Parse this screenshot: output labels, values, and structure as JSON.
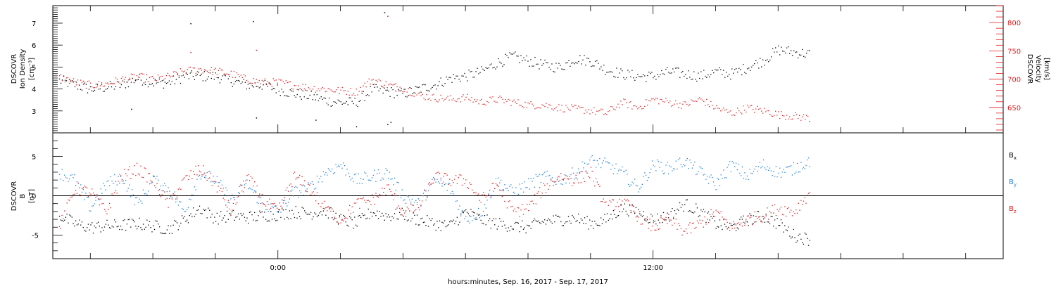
{
  "x_axis_title": "hours:minutes, Sep. 16, 2017 - Sep. 17, 2017",
  "colors": {
    "black": "#000000",
    "blue": "#1f7fe0",
    "red": "#e41a1c"
  },
  "chart_data": [
    {
      "type": "scatter",
      "panel": "top",
      "x_unit": "hours from 00:00 Sep. 17, 2017",
      "xlim": [
        -7.2,
        23.2
      ],
      "x_ticks": [
        {
          "x": 0,
          "label": "0:00"
        },
        {
          "x": 12,
          "label": "12:00"
        }
      ],
      "ylabel_left": [
        "DSCOVR",
        "Ion Density",
        "[cm⁻³]"
      ],
      "ylabel_right": [
        "DSCOVR",
        "Velocity",
        "[km/s]"
      ],
      "ylim_left": [
        2.0,
        7.8
      ],
      "ylim_right": [
        605,
        830
      ],
      "yticks_left": [
        3,
        4,
        5,
        6,
        7
      ],
      "yticks_right": [
        650,
        700,
        750,
        800
      ],
      "series": [
        {
          "axis": "left",
          "color": "black",
          "x": [
            -7.0,
            -6.5,
            -6.0,
            -5.5,
            -5.0,
            -4.5,
            -4.0,
            -3.5,
            -3.0,
            -2.5,
            -2.0,
            -1.5,
            -1.0,
            -0.5,
            0.0,
            0.5,
            1.0,
            1.5,
            2.0,
            2.5,
            3.0,
            3.5,
            4.0,
            4.5,
            5.0,
            5.5,
            6.0,
            6.5,
            7.0,
            7.5,
            8.0,
            8.5,
            9.0,
            9.5,
            10.0,
            10.5,
            11.0,
            11.5,
            12.0,
            12.5,
            13.0,
            13.5,
            14.0,
            14.5,
            15.0,
            15.5,
            16.0,
            16.5,
            17.0
          ],
          "y": [
            4.4,
            4.2,
            4.0,
            4.1,
            4.2,
            4.5,
            4.3,
            4.3,
            4.6,
            4.6,
            4.6,
            4.4,
            4.2,
            4.2,
            4.0,
            3.8,
            3.7,
            3.5,
            3.4,
            3.4,
            4.0,
            3.9,
            3.8,
            4.0,
            4.2,
            4.5,
            4.6,
            4.8,
            5.2,
            5.5,
            5.3,
            5.1,
            5.0,
            5.4,
            5.3,
            4.9,
            4.7,
            4.6,
            4.6,
            4.8,
            4.7,
            4.6,
            4.8,
            4.7,
            5.0,
            5.3,
            5.8,
            5.7,
            5.6
          ],
          "outliers_x": [
            -4.7,
            -2.8,
            -0.8,
            -0.7,
            1.2,
            2.5,
            3.4,
            3.5,
            3.6
          ],
          "outliers_y": [
            3.1,
            7.0,
            7.1,
            2.7,
            2.6,
            2.3,
            7.5,
            2.4,
            2.5
          ]
        },
        {
          "axis": "right",
          "color": "red",
          "x": [
            -7.0,
            -6.5,
            -6.0,
            -5.5,
            -5.0,
            -4.5,
            -4.0,
            -3.5,
            -3.0,
            -2.5,
            -2.0,
            -1.5,
            -1.0,
            -0.5,
            0.0,
            0.5,
            1.0,
            1.5,
            2.0,
            2.5,
            3.0,
            3.5,
            4.0,
            4.5,
            5.0,
            5.5,
            6.0,
            6.5,
            7.0,
            7.5,
            8.0,
            8.5,
            9.0,
            9.5,
            10.0,
            10.5,
            11.0,
            11.5,
            12.0,
            12.5,
            13.0,
            13.5,
            14.0,
            14.5,
            15.0,
            15.5,
            16.0,
            16.5,
            17.0
          ],
          "y": [
            705,
            695,
            690,
            692,
            700,
            705,
            700,
            705,
            715,
            718,
            715,
            710,
            700,
            695,
            695,
            690,
            685,
            683,
            680,
            678,
            700,
            690,
            685,
            672,
            668,
            665,
            668,
            660,
            665,
            660,
            655,
            655,
            650,
            648,
            645,
            640,
            660,
            650,
            665,
            660,
            655,
            665,
            650,
            640,
            650,
            645,
            638,
            635,
            632
          ],
          "outliers_x": [
            3.5,
            -2.8,
            -0.7
          ],
          "outliers_y": [
            812,
            748,
            752
          ]
        }
      ]
    },
    {
      "type": "scatter",
      "panel": "bottom",
      "x_unit": "hours from 00:00 Sep. 17, 2017",
      "xlim": [
        -7.2,
        23.2
      ],
      "ylabel_left": [
        "DSCOVR",
        "B",
        "[nT]"
      ],
      "ylim": [
        -8,
        8
      ],
      "yticks": [
        -5,
        0,
        5
      ],
      "legend_placement": "right",
      "series": [
        {
          "name": "Bx",
          "color": "black",
          "x": [
            -7.0,
            -6.5,
            -6.0,
            -5.5,
            -5.0,
            -4.5,
            -4.0,
            -3.5,
            -3.0,
            -2.5,
            -2.0,
            -1.5,
            -1.0,
            -0.5,
            0.0,
            0.5,
            1.0,
            1.5,
            2.0,
            2.5,
            3.0,
            3.5,
            4.0,
            4.5,
            5.0,
            5.5,
            6.0,
            6.5,
            7.0,
            7.5,
            8.0,
            8.5,
            9.0,
            9.5,
            10.0,
            10.5,
            11.0,
            11.5,
            12.0,
            12.5,
            13.0,
            13.5,
            14.0,
            14.5,
            15.0,
            15.5,
            16.0,
            16.5,
            17.0
          ],
          "y": [
            -2.5,
            -3.5,
            -4.0,
            -3.8,
            -3.7,
            -3.5,
            -3.8,
            -4.2,
            -3.0,
            -1.5,
            -2.8,
            -2.5,
            -2.7,
            -2.5,
            -2.3,
            -2.0,
            -2.2,
            -1.8,
            -3.0,
            -3.5,
            -2.0,
            -2.5,
            -2.3,
            -3.0,
            -3.5,
            -3.8,
            -2.0,
            -3.0,
            -3.5,
            -3.8,
            -4.0,
            -3.2,
            -3.0,
            -2.8,
            -3.5,
            -3.0,
            -1.5,
            -2.0,
            -3.0,
            -2.5,
            -1.0,
            -2.0,
            -3.5,
            -4.0,
            -3.0,
            -2.5,
            -3.5,
            -5.0,
            -5.5
          ]
        },
        {
          "name": "By",
          "color": "blue",
          "x": [
            -7.0,
            -6.5,
            -6.0,
            -5.5,
            -5.0,
            -4.5,
            -4.0,
            -3.5,
            -3.0,
            -2.5,
            -2.0,
            -1.5,
            -1.0,
            -0.5,
            0.0,
            0.5,
            1.0,
            1.5,
            2.0,
            2.5,
            3.0,
            3.5,
            4.0,
            4.5,
            5.0,
            5.5,
            6.0,
            6.5,
            7.0,
            7.5,
            8.0,
            8.5,
            9.0,
            9.5,
            10.0,
            10.5,
            11.0,
            11.5,
            12.0,
            12.5,
            13.0,
            13.5,
            14.0,
            14.5,
            15.0,
            15.5,
            16.0,
            16.5,
            17.0
          ],
          "y": [
            3.0,
            2.0,
            -1.5,
            1.5,
            2.5,
            -1.0,
            2.0,
            1.0,
            -2.0,
            3.0,
            2.0,
            -0.5,
            1.5,
            -1.0,
            -2.0,
            0.5,
            1.0,
            3.0,
            4.0,
            2.0,
            2.5,
            3.0,
            0.0,
            -1.0,
            2.0,
            1.0,
            -3.0,
            -2.0,
            2.0,
            0.5,
            1.5,
            2.5,
            2.0,
            3.0,
            4.5,
            4.0,
            3.0,
            1.0,
            4.0,
            3.5,
            4.5,
            3.0,
            1.5,
            4.0,
            2.5,
            4.0,
            3.0,
            3.5,
            4.5
          ]
        },
        {
          "name": "Bz",
          "color": "red",
          "x": [
            -7.0,
            -6.5,
            -6.0,
            -5.5,
            -5.0,
            -4.5,
            -4.0,
            -3.5,
            -3.0,
            -2.5,
            -2.0,
            -1.5,
            -1.0,
            -0.5,
            0.0,
            0.5,
            1.0,
            1.5,
            2.0,
            2.5,
            3.0,
            3.5,
            4.0,
            4.5,
            5.0,
            5.5,
            6.0,
            6.5,
            7.0,
            7.5,
            8.0,
            8.5,
            9.0,
            9.5,
            10.0,
            10.5,
            11.0,
            11.5,
            12.0,
            12.5,
            13.0,
            13.5,
            14.0,
            14.5,
            15.0,
            15.5,
            16.0,
            16.5,
            17.0
          ],
          "y": [
            -4.0,
            1.0,
            0.5,
            -2.0,
            2.5,
            3.5,
            2.0,
            -1.0,
            2.0,
            3.5,
            1.5,
            -2.0,
            2.5,
            -0.5,
            -2.0,
            2.5,
            1.0,
            -1.5,
            -3.0,
            -1.0,
            -0.5,
            1.0,
            -2.0,
            -1.5,
            2.5,
            2.0,
            2.0,
            -0.5,
            1.5,
            -2.0,
            -1.5,
            1.0,
            2.5,
            2.0,
            3.0,
            -1.5,
            -0.5,
            -2.5,
            -4.0,
            -3.0,
            -4.5,
            -3.5,
            -2.0,
            -4.0,
            -3.0,
            -2.5,
            -1.5,
            -2.0,
            0.5
          ]
        }
      ]
    }
  ]
}
